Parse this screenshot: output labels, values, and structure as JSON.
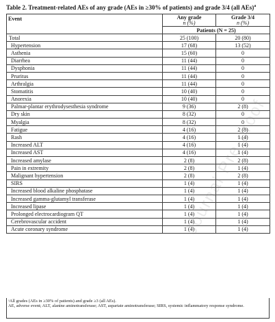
{
  "caption": {
    "text": "Table 2. Treatment-related AEs of any grade (AEs in ≥30% of patients) and grade 3/4 (all AEs)",
    "sup": "a"
  },
  "headers": {
    "event": "Event",
    "any_grade_line1": "Any grade",
    "any_grade_line2": "n (%)",
    "grade34_line1": "Grade 3/4",
    "grade34_line2": "n (%)",
    "patients_label": "Patients (N = 25)"
  },
  "rows": [
    {
      "event": "Total",
      "any": "25 (100)",
      "g34": "20 (80)"
    },
    {
      "event": "Hypertension",
      "any": "17 (68)",
      "g34": "13 (52)"
    },
    {
      "event": "Asthenia",
      "any": "15 (60)",
      "g34": "0"
    },
    {
      "event": "Diarrhea",
      "any": "11 (44)",
      "g34": "0"
    },
    {
      "event": "Dysphonia",
      "any": "11 (44)",
      "g34": "0"
    },
    {
      "event": "Pruritus",
      "any": "11 (44)",
      "g34": "0"
    },
    {
      "event": "Arthralgia",
      "any": "11 (44)",
      "g34": "0"
    },
    {
      "event": "Stomatitis",
      "any": "10 (40)",
      "g34": "0"
    },
    {
      "event": "Anorexia",
      "any": "10 (40)",
      "g34": "0"
    },
    {
      "event": "Palmar-plantar erythrodysesthesia syndrome",
      "any": "9 (36)",
      "g34": "2 (8)"
    },
    {
      "event": "Dry skin",
      "any": "8 (32)",
      "g34": "0"
    },
    {
      "event": "Myalgia",
      "any": "8 (32)",
      "g34": "0"
    },
    {
      "event": "Fatigue",
      "any": "4 (16)",
      "g34": "2 (8)"
    },
    {
      "event": "Rash",
      "any": "4 (16)",
      "g34": "1 (4)"
    },
    {
      "event": "Increased ALT",
      "any": "4 (16)",
      "g34": "1 (4)"
    },
    {
      "event": "Increased AST",
      "any": "4 (16)",
      "g34": "1 (4)"
    },
    {
      "event": "Increased amylase",
      "any": "2 (8)",
      "g34": "2 (8)"
    },
    {
      "event": "Pain in extremity",
      "any": "2 (8)",
      "g34": "1 (4)"
    },
    {
      "event": "Malignant hypertension",
      "any": "2 (8)",
      "g34": "2 (8)"
    },
    {
      "event": "SIRS",
      "any": "1 (4)",
      "g34": "1 (4)"
    },
    {
      "event": "Increased blood alkaline phosphatase",
      "any": "1 (4)",
      "g34": "1 (4)"
    },
    {
      "event": "Increased gamma-glutamyl transferase",
      "any": "1 (4)",
      "g34": "1 (4)"
    },
    {
      "event": "Increased lipase",
      "any": "1 (4)",
      "g34": "1 (4)"
    },
    {
      "event": "Prolonged electrocardiogram QT",
      "any": "1 (4)",
      "g34": "1 (4)"
    },
    {
      "event": "Cerebrovascular accident",
      "any": "1 (4)",
      "g34": "1 (4)"
    },
    {
      "event": "Acute coronary syndrome",
      "any": "1 (4)",
      "g34": "1 (4)"
    }
  ],
  "footnote": {
    "line1": "ᵃAll grades (AEs in ≥30% of patients) and grade ≥3 (all AEs).",
    "line2": "AE, adverse event; ALT, alanine aminotransferase; AST, aspartate aminotransferase; SIRS, systemic inflammatory response syndrome."
  },
  "watermark": "Journal Pre-proof"
}
